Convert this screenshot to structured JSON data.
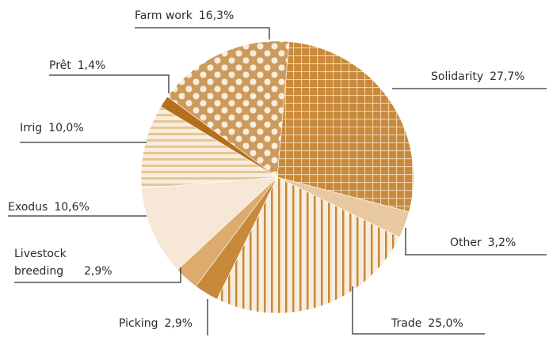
{
  "chart_data": {
    "type": "pie",
    "categories": [
      "Solidarity",
      "Other",
      "Trade",
      "Picking",
      "Livestock breeding",
      "Exodus",
      "Irrig",
      "Prêt",
      "Farm work"
    ],
    "values": [
      27.7,
      3.2,
      25.0,
      2.9,
      2.9,
      10.6,
      10.0,
      1.4,
      16.3
    ],
    "value_labels": [
      "27,7%",
      "3,2%",
      "25,0%",
      "2,9%",
      "2,9%",
      "10,6%",
      "10,0%",
      "1,4%",
      "16,3%"
    ],
    "colors": [
      "#c8893a",
      "#e9c9a0",
      "#c8893a",
      "#c8893a",
      "#dcab6e",
      "#f6e7d6",
      "#e6c597",
      "#b56f1c",
      "#cc9a5c"
    ],
    "patterns": [
      "grid",
      "none",
      "vlines",
      "none",
      "none",
      "none",
      "hlines",
      "none",
      "dots"
    ]
  }
}
